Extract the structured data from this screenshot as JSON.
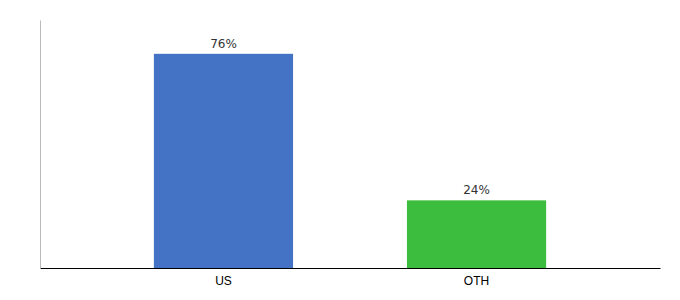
{
  "chart_data": {
    "type": "bar",
    "categories": [
      "US",
      "OTH"
    ],
    "values": [
      76,
      24
    ],
    "value_labels": [
      "76%",
      "24%"
    ],
    "colors": [
      "#4472C4",
      "#3DBD3D"
    ],
    "ylim": [
      0,
      88
    ],
    "data_labels": true,
    "tick_labels": "x"
  }
}
